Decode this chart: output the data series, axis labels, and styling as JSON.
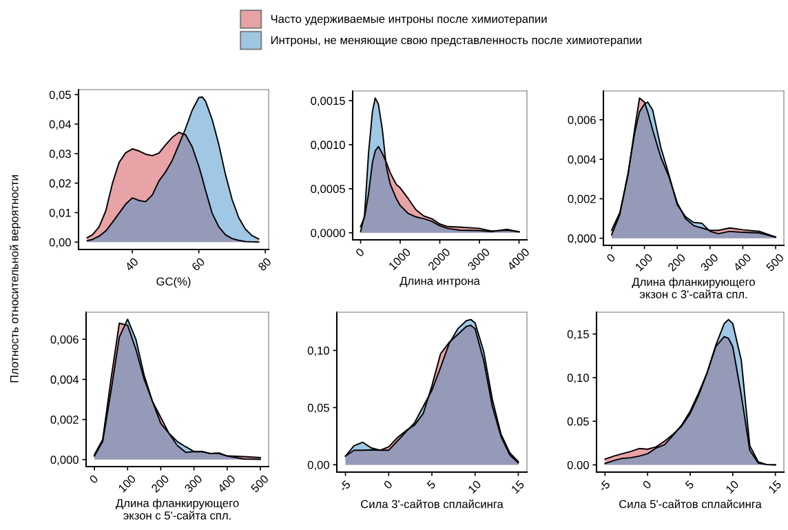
{
  "chart_data": [
    {
      "type": "area",
      "ylabel": "Плотность относительной вероятности",
      "xlabel": "GC(%)",
      "legend": "top",
      "x": [
        26.4,
        28,
        30,
        32,
        34,
        36,
        38,
        40,
        42,
        44,
        46,
        48,
        50,
        52,
        54,
        56,
        58,
        60,
        61,
        62,
        64,
        66,
        68,
        70,
        72,
        74,
        76,
        78
      ],
      "series": [
        {
          "name": "Часто удерживаемые интроны после химиотерапии",
          "color": "#d1474f",
          "values": [
            0.0015,
            0.0025,
            0.0052,
            0.0106,
            0.0199,
            0.027,
            0.0303,
            0.0316,
            0.0309,
            0.0298,
            0.0293,
            0.0302,
            0.033,
            0.0355,
            0.0372,
            0.0364,
            0.0323,
            0.0257,
            0.0218,
            0.0176,
            0.0098,
            0.0052,
            0.0025,
            0.0012,
            0.0006,
            0.0002,
            0.0001,
            0
          ]
        },
        {
          "name": "Интроны, не меняющие свою представленность после химиотерапии",
          "color": "#4191c9",
          "values": [
            0.0005,
            0.0009,
            0.002,
            0.0038,
            0.0067,
            0.0098,
            0.0129,
            0.015,
            0.0141,
            0.0137,
            0.016,
            0.0207,
            0.0238,
            0.0277,
            0.0331,
            0.0385,
            0.0447,
            0.049,
            0.0492,
            0.0478,
            0.0416,
            0.0331,
            0.023,
            0.0145,
            0.0083,
            0.0044,
            0.0022,
            0.0011
          ]
        }
      ],
      "xlim": [
        23.8,
        81
      ],
      "ylim": [
        -0.0025,
        0.0517
      ],
      "xticks": [
        40,
        60,
        80
      ],
      "yticks": [
        {
          "value": 0,
          "label": "0,00"
        },
        {
          "value": 0.01,
          "label": "0,01"
        },
        {
          "value": 0.02,
          "label": "0,02"
        },
        {
          "value": 0.03,
          "label": "0,03"
        },
        {
          "value": 0.04,
          "label": "0,04"
        },
        {
          "value": 0.05,
          "label": "0,05"
        }
      ]
    },
    {
      "type": "area",
      "xlabel": "Длина интрона",
      "x": [
        0,
        100,
        200,
        300,
        370,
        450,
        550,
        650,
        750,
        900,
        1000,
        1200,
        1400,
        1600,
        1800,
        2000,
        2200,
        2500,
        3000,
        3300,
        3700,
        4000
      ],
      "series": [
        {
          "color": "#d1474f",
          "values": [
            7e-05,
            0.00018,
            0.00044,
            0.0008,
            0.00093,
            0.00098,
            0.0009,
            0.0008,
            0.00068,
            0.00055,
            0.00051,
            0.00039,
            0.00026,
            0.00019,
            0.00016,
            0.0001,
            7e-05,
            6.5e-05,
            5e-05,
            2e-05,
            3e-05,
            1.3e-05
          ]
        },
        {
          "color": "#4191c9",
          "values": [
            1.3e-05,
            0.0002,
            0.0009,
            0.00138,
            0.00153,
            0.00146,
            0.00117,
            0.00075,
            0.00055,
            0.00039,
            0.00031,
            0.00022,
            0.00018,
            0.00016,
            0.00013,
            8e-05,
            5e-05,
            3e-05,
            2.5e-05,
            1.3e-05,
            4e-05,
            1e-05
          ]
        }
      ],
      "xlim": [
        -200,
        4200
      ],
      "ylim": [
        -8e-05,
        0.00161
      ],
      "xticks": [
        0,
        1000,
        2000,
        3000,
        4000
      ],
      "yticks": [
        {
          "value": 0,
          "label": "0,0000"
        },
        {
          "value": 0.0005,
          "label": "0,0005"
        },
        {
          "value": 0.001,
          "label": "0,0010"
        },
        {
          "value": 0.0015,
          "label": "0,0015"
        }
      ]
    },
    {
      "type": "area",
      "xlabel": "Длина фланкирующего\nэкзон с 3'-сайта спл.",
      "x": [
        0,
        25,
        50,
        70,
        85,
        100,
        110,
        125,
        150,
        175,
        200,
        225,
        250,
        275,
        300,
        325,
        360,
        400,
        450,
        500
      ],
      "series": [
        {
          "color": "#d1474f",
          "values": [
            0.0004,
            0.0013,
            0.0032,
            0.0055,
            0.0071,
            0.0069,
            0.0064,
            0.0055,
            0.0041,
            0.0031,
            0.0018,
            0.001,
            0.00064,
            0.00052,
            0.0004,
            0.0004,
            0.00052,
            0.00043,
            0.00035,
            6e-05
          ]
        },
        {
          "color": "#4191c9",
          "values": [
            0.00017,
            0.0012,
            0.0033,
            0.0053,
            0.0064,
            0.0068,
            0.0069,
            0.0065,
            0.0046,
            0.0032,
            0.0017,
            0.0011,
            0.0008,
            0.00076,
            0.00035,
            0.00023,
            0.00035,
            0.0003,
            0.00027,
            6e-05
          ]
        }
      ],
      "xlim": [
        -25,
        525
      ],
      "ylim": [
        -0.00036,
        0.00746
      ],
      "xticks": [
        0,
        100,
        200,
        300,
        400,
        500
      ],
      "yticks": [
        {
          "value": 0,
          "label": "0,000"
        },
        {
          "value": 0.002,
          "label": "0,002"
        },
        {
          "value": 0.004,
          "label": "0,004"
        },
        {
          "value": 0.006,
          "label": "0,006"
        }
      ]
    },
    {
      "type": "area",
      "xlabel": "Длина фланкирующего\nэкзон с 5'-сайта спл.",
      "x": [
        0,
        25,
        50,
        75,
        100,
        125,
        150,
        175,
        200,
        225,
        250,
        275,
        300,
        325,
        350,
        375,
        400,
        450,
        500
      ],
      "series": [
        {
          "color": "#d1474f",
          "values": [
            0.00024,
            0.001,
            0.004,
            0.0068,
            0.0067,
            0.0055,
            0.004,
            0.0029,
            0.0021,
            0.0013,
            0.0007,
            0.00036,
            0.0004,
            0.0004,
            0.0003,
            0.00033,
            0.00018,
            0.00015,
            0.0001
          ]
        },
        {
          "color": "#4191c9",
          "values": [
            0.00018,
            0.0009,
            0.0034,
            0.0061,
            0.007,
            0.006,
            0.0042,
            0.0029,
            0.0018,
            0.0013,
            0.0009,
            0.00064,
            0.0004,
            0.0004,
            0.0003,
            0.0003,
            0.00018,
            3e-05,
            1e-05
          ]
        }
      ],
      "xlim": [
        -25,
        525
      ],
      "ylim": [
        -0.00035,
        0.00735
      ],
      "xticks": [
        0,
        100,
        200,
        300,
        400,
        500
      ],
      "yticks": [
        {
          "value": 0,
          "label": "0,000"
        },
        {
          "value": 0.002,
          "label": "0,002"
        },
        {
          "value": 0.004,
          "label": "0,004"
        },
        {
          "value": 0.006,
          "label": "0,006"
        }
      ]
    },
    {
      "type": "area",
      "xlabel": "Сила 3'-сайтов сплайсинга",
      "x": [
        -5,
        -4,
        -3,
        -2,
        -1,
        0,
        1,
        2,
        3,
        4,
        5,
        6,
        7,
        8,
        9,
        9.5,
        10,
        11,
        12,
        13,
        14,
        15
      ],
      "series": [
        {
          "color": "#d1474f",
          "values": [
            0.0076,
            0.0127,
            0.0127,
            0.013,
            0.0127,
            0.0157,
            0.0237,
            0.0298,
            0.0348,
            0.0449,
            0.069,
            0.097,
            0.107,
            0.114,
            0.121,
            0.122,
            0.119,
            0.091,
            0.051,
            0.0247,
            0.0087,
            0.0016
          ]
        },
        {
          "color": "#4191c9",
          "values": [
            0.0076,
            0.0167,
            0.0197,
            0.0147,
            0.0127,
            0.0127,
            0.0207,
            0.0288,
            0.0368,
            0.051,
            0.065,
            0.085,
            0.106,
            0.119,
            0.126,
            0.127,
            0.124,
            0.099,
            0.057,
            0.0268,
            0.0107,
            0.0026
          ]
        }
      ],
      "xlim": [
        -6,
        16
      ],
      "ylim": [
        -0.0064,
        0.1334
      ],
      "xticks": [
        -5,
        0,
        5,
        10,
        15
      ],
      "yticks": [
        {
          "value": 0,
          "label": "0,00"
        },
        {
          "value": 0.05,
          "label": "0,05"
        },
        {
          "value": 0.1,
          "label": "0,10"
        }
      ]
    },
    {
      "type": "area",
      "xlabel": "Сила 5'-сайтов сплайсинга",
      "x": [
        -5,
        -4,
        -3,
        -2,
        -1,
        0,
        1,
        2,
        3,
        4,
        5,
        6,
        7,
        8,
        9,
        9.5,
        10,
        11,
        12,
        13,
        14,
        15
      ],
      "series": [
        {
          "color": "#d1474f",
          "values": [
            0.0066,
            0.01,
            0.0127,
            0.0153,
            0.0187,
            0.018,
            0.0206,
            0.0272,
            0.0351,
            0.0444,
            0.0589,
            0.08,
            0.106,
            0.1355,
            0.147,
            0.145,
            0.1355,
            0.08,
            0.0166,
            0.0021,
            0.0003,
            0
          ]
        },
        {
          "color": "#4191c9",
          "values": [
            0.0016,
            0.0048,
            0.0074,
            0.0082,
            0.01,
            0.0127,
            0.0193,
            0.0232,
            0.0338,
            0.0457,
            0.0615,
            0.0827,
            0.106,
            0.137,
            0.162,
            0.1666,
            0.162,
            0.12,
            0.0219,
            0.0034,
            0.0003,
            0
          ]
        }
      ],
      "xlim": [
        -6,
        16
      ],
      "ylim": [
        -0.0083,
        0.175
      ],
      "xticks": [
        -5,
        0,
        5,
        10,
        15
      ],
      "yticks": [
        {
          "value": 0,
          "label": "0.00"
        },
        {
          "value": 0.05,
          "label": "0.05"
        },
        {
          "value": 0.1,
          "label": "0,10"
        },
        {
          "value": 0.15,
          "label": "0,15"
        }
      ]
    }
  ]
}
